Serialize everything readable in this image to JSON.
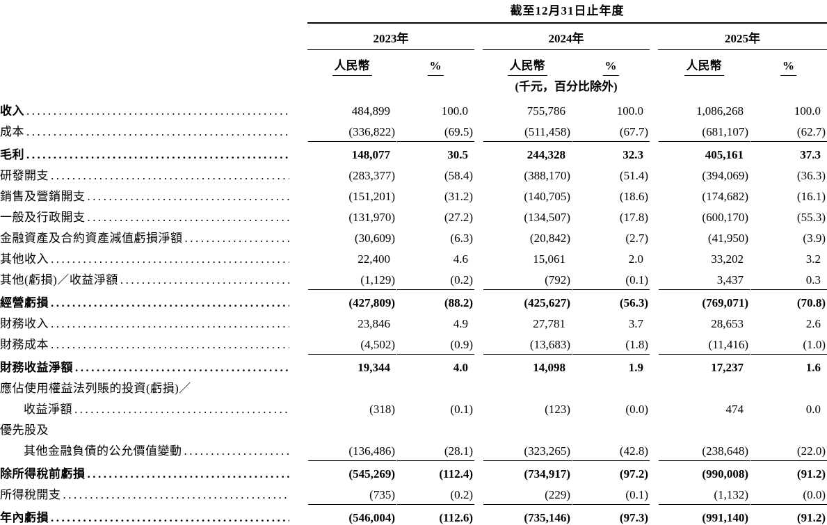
{
  "table": {
    "period_header": "截至12月31日止年度",
    "unit_note": "(千元，百分比除外)",
    "year_groups": [
      {
        "year": "2023年",
        "currency_label": "人民幣",
        "pct_label": "%"
      },
      {
        "year": "2024年",
        "currency_label": "人民幣",
        "pct_label": "%"
      },
      {
        "year": "2025年",
        "currency_label": "人民幣",
        "pct_label": "%"
      }
    ],
    "rows": [
      {
        "label": "收入",
        "label_bold": true,
        "values": [
          "484,899",
          "100.0",
          "755,786",
          "100.0",
          "1,086,268",
          "100.0"
        ]
      },
      {
        "label": "成本",
        "underline": true,
        "values": [
          "(336,822)",
          "(69.5)",
          "(511,458)",
          "(67.7)",
          "(681,107)",
          "(62.7)"
        ]
      },
      {
        "label": "毛利",
        "bold": true,
        "values": [
          "148,077",
          "30.5",
          "244,328",
          "32.3",
          "405,161",
          "37.3"
        ]
      },
      {
        "label": "研發開支",
        "values": [
          "(283,377)",
          "(58.4)",
          "(388,170)",
          "(51.4)",
          "(394,069)",
          "(36.3)"
        ]
      },
      {
        "label": "銷售及營銷開支",
        "values": [
          "(151,201)",
          "(31.2)",
          "(140,705)",
          "(18.6)",
          "(174,682)",
          "(16.1)"
        ]
      },
      {
        "label": "一般及行政開支",
        "values": [
          "(131,970)",
          "(27.2)",
          "(134,507)",
          "(17.8)",
          "(600,170)",
          "(55.3)"
        ]
      },
      {
        "label": "金融資產及合約資產減值虧損淨額",
        "values": [
          "(30,609)",
          "(6.3)",
          "(20,842)",
          "(2.7)",
          "(41,950)",
          "(3.9)"
        ]
      },
      {
        "label": "其他收入",
        "values": [
          "22,400",
          "4.6",
          "15,061",
          "2.0",
          "33,202",
          "3.2"
        ]
      },
      {
        "label": "其他(虧損)／收益淨額",
        "underline": true,
        "values": [
          "(1,129)",
          "(0.2)",
          "(792)",
          "(0.1)",
          "3,437",
          "0.3"
        ]
      },
      {
        "label": "經營虧損",
        "bold": true,
        "values": [
          "(427,809)",
          "(88.2)",
          "(425,627)",
          "(56.3)",
          "(769,071)",
          "(70.8)"
        ]
      },
      {
        "label": "財務收入",
        "values": [
          "23,846",
          "4.9",
          "27,781",
          "3.7",
          "28,653",
          "2.6"
        ]
      },
      {
        "label": "財務成本",
        "underline": true,
        "values": [
          "(4,502)",
          "(0.9)",
          "(13,683)",
          "(1.8)",
          "(11,416)",
          "(1.0)"
        ]
      },
      {
        "label": "財務收益淨額",
        "bold": true,
        "values": [
          "19,344",
          "4.0",
          "14,098",
          "1.9",
          "17,237",
          "1.6"
        ]
      },
      {
        "label": "應佔使用權益法列賬的投資(虧損)／",
        "label_only": true
      },
      {
        "label": "收益淨額",
        "indent": true,
        "values": [
          "(318)",
          "(0.1)",
          "(123)",
          "(0.0)",
          "474",
          "0.0"
        ]
      },
      {
        "label": "優先股及",
        "label_only": true
      },
      {
        "label": "其他金融負債的公允價值變動",
        "indent": true,
        "underline": true,
        "values": [
          "(136,486)",
          "(28.1)",
          "(323,265)",
          "(42.8)",
          "(238,648)",
          "(22.0)"
        ]
      },
      {
        "label": "除所得稅前虧損",
        "bold": true,
        "values": [
          "(545,269)",
          "(112.4)",
          "(734,917)",
          "(97.2)",
          "(990,008)",
          "(91.2)"
        ]
      },
      {
        "label": "所得稅開支",
        "underline": true,
        "values": [
          "(735)",
          "(0.2)",
          "(229)",
          "(0.1)",
          "(1,132)",
          "(0.0)"
        ]
      },
      {
        "label": "年內虧損",
        "bold": true,
        "double_underline": true,
        "values": [
          "(546,004)",
          "(112.6)",
          "(735,146)",
          "(97.3)",
          "(991,140)",
          "(91.2)"
        ]
      }
    ]
  }
}
